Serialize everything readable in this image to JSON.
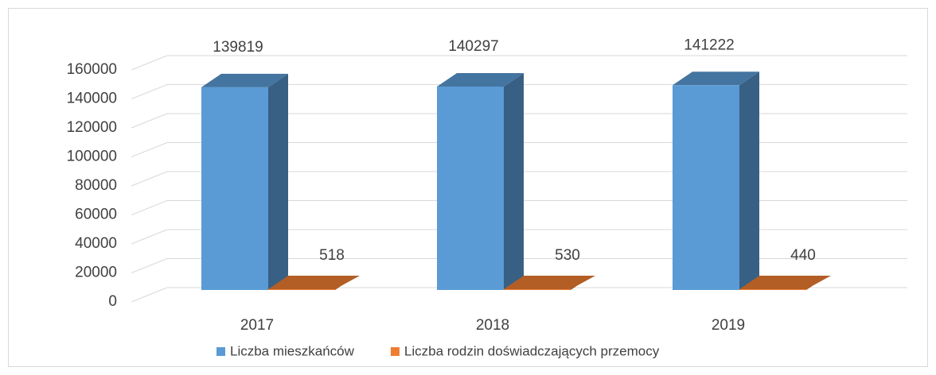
{
  "chart_data": {
    "type": "bar",
    "categories": [
      "2017",
      "2018",
      "2019"
    ],
    "series": [
      {
        "name": "Liczba mieszkańców",
        "color": "#5b9bd5",
        "values": [
          139819,
          140297,
          141222
        ]
      },
      {
        "name": "Liczba rodzin doświadczających przemocy",
        "color": "#ed7d31",
        "values": [
          518,
          530,
          440
        ]
      }
    ],
    "ylim": [
      0,
      160000
    ],
    "yticks": [
      0,
      20000,
      40000,
      60000,
      80000,
      100000,
      120000,
      140000,
      160000
    ],
    "grid": true,
    "legend": "bottom"
  }
}
